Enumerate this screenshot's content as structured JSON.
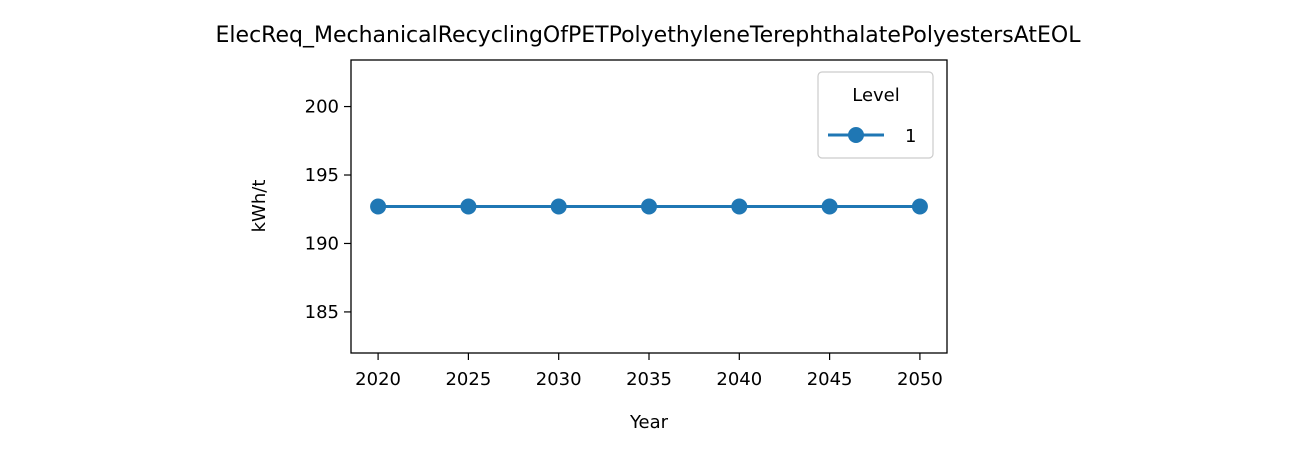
{
  "chart_data": {
    "type": "line",
    "title": "ElecReq_MechanicalRecyclingOfPETPolyethyleneTerephthalatePolyestersAtEOL",
    "xlabel": "Year",
    "ylabel": "kWh/t",
    "x": [
      2020,
      2025,
      2030,
      2035,
      2040,
      2045,
      2050
    ],
    "xticks": [
      2020,
      2025,
      2030,
      2035,
      2040,
      2045,
      2050
    ],
    "yticks": [
      185,
      190,
      195,
      200
    ],
    "xlim": [
      2018.5,
      2051.5
    ],
    "ylim": [
      182.0,
      203.4
    ],
    "grid": false,
    "legend": {
      "title": "Level",
      "placement": "top-right"
    },
    "series": [
      {
        "name": "1",
        "color": "#1f77b4",
        "marker": "circle",
        "values": [
          192.7,
          192.7,
          192.7,
          192.7,
          192.7,
          192.7,
          192.7
        ]
      }
    ]
  }
}
